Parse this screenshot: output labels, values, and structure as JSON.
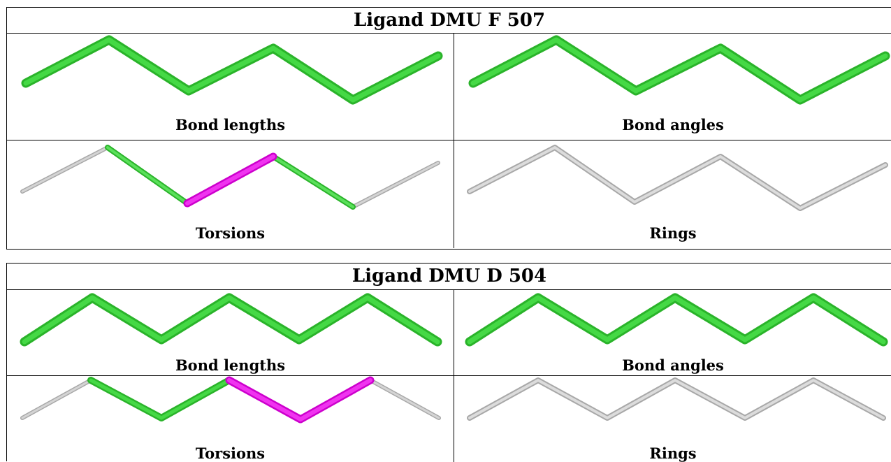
{
  "tables": [
    {
      "title": "Ligand DMU F 507",
      "bond_lengths_label": "Bond lengths",
      "bond_angles_label": "Bond angles",
      "torsions_label": "Torsions",
      "rings_label": "Rings"
    },
    {
      "title": "Ligand DMU D 504",
      "bond_lengths_label": "Bond lengths",
      "bond_angles_label": "Bond angles",
      "torsions_label": "Torsions",
      "rings_label": "Rings"
    }
  ],
  "colors": {
    "ok_bond": "#33cc33",
    "flagged_torsion": "#e600e6",
    "not_assessed": "#c0c0c0"
  }
}
